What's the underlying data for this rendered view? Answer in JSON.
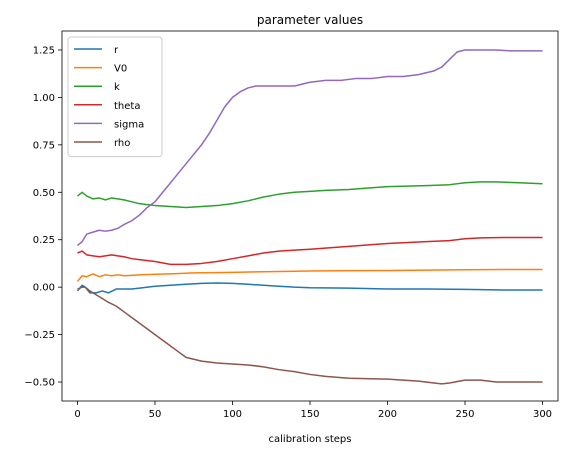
{
  "chart_data": {
    "type": "line",
    "title": "parameter values",
    "xlabel": "calibration steps",
    "ylabel": "",
    "xlim": [
      -10,
      310
    ],
    "ylim": [
      -0.6,
      1.35
    ],
    "xticks": [
      0,
      50,
      100,
      150,
      200,
      250,
      300
    ],
    "yticks": [
      -0.5,
      -0.25,
      0.0,
      0.25,
      0.5,
      0.75,
      1.0,
      1.25
    ],
    "ytick_labels": [
      "−0.50",
      "−0.25",
      "0.00",
      "0.25",
      "0.50",
      "0.75",
      "1.00",
      "1.25"
    ],
    "grid": false,
    "legend_position": "upper-left",
    "series": [
      {
        "name": "r",
        "color": "#1f77b4",
        "points": [
          [
            0,
            -0.02
          ],
          [
            3,
            0.01
          ],
          [
            5,
            0.0
          ],
          [
            8,
            -0.03
          ],
          [
            12,
            -0.03
          ],
          [
            16,
            -0.02
          ],
          [
            20,
            -0.03
          ],
          [
            25,
            -0.01
          ],
          [
            30,
            -0.01
          ],
          [
            35,
            -0.01
          ],
          [
            40,
            -0.005
          ],
          [
            50,
            0.005
          ],
          [
            60,
            0.01
          ],
          [
            70,
            0.015
          ],
          [
            80,
            0.02
          ],
          [
            90,
            0.022
          ],
          [
            100,
            0.02
          ],
          [
            110,
            0.015
          ],
          [
            120,
            0.01
          ],
          [
            130,
            0.005
          ],
          [
            140,
            0.0
          ],
          [
            150,
            -0.003
          ],
          [
            175,
            -0.005
          ],
          [
            200,
            -0.01
          ],
          [
            225,
            -0.01
          ],
          [
            250,
            -0.012
          ],
          [
            275,
            -0.015
          ],
          [
            300,
            -0.015
          ]
        ]
      },
      {
        "name": "V0",
        "color": "#ff7f0e",
        "points": [
          [
            0,
            0.03
          ],
          [
            3,
            0.06
          ],
          [
            6,
            0.055
          ],
          [
            10,
            0.07
          ],
          [
            14,
            0.055
          ],
          [
            18,
            0.065
          ],
          [
            22,
            0.06
          ],
          [
            26,
            0.065
          ],
          [
            30,
            0.06
          ],
          [
            40,
            0.065
          ],
          [
            50,
            0.068
          ],
          [
            60,
            0.07
          ],
          [
            75,
            0.075
          ],
          [
            100,
            0.078
          ],
          [
            125,
            0.082
          ],
          [
            150,
            0.085
          ],
          [
            175,
            0.087
          ],
          [
            200,
            0.088
          ],
          [
            225,
            0.09
          ],
          [
            250,
            0.092
          ],
          [
            275,
            0.093
          ],
          [
            300,
            0.093
          ]
        ]
      },
      {
        "name": "k",
        "color": "#2ca02c",
        "points": [
          [
            0,
            0.48
          ],
          [
            3,
            0.5
          ],
          [
            6,
            0.48
          ],
          [
            10,
            0.465
          ],
          [
            14,
            0.47
          ],
          [
            18,
            0.46
          ],
          [
            22,
            0.47
          ],
          [
            26,
            0.465
          ],
          [
            30,
            0.46
          ],
          [
            40,
            0.44
          ],
          [
            50,
            0.43
          ],
          [
            60,
            0.425
          ],
          [
            70,
            0.42
          ],
          [
            80,
            0.425
          ],
          [
            90,
            0.43
          ],
          [
            100,
            0.44
          ],
          [
            110,
            0.455
          ],
          [
            120,
            0.475
          ],
          [
            130,
            0.49
          ],
          [
            140,
            0.5
          ],
          [
            150,
            0.505
          ],
          [
            160,
            0.51
          ],
          [
            175,
            0.515
          ],
          [
            200,
            0.53
          ],
          [
            225,
            0.535
          ],
          [
            240,
            0.54
          ],
          [
            250,
            0.55
          ],
          [
            260,
            0.555
          ],
          [
            270,
            0.555
          ],
          [
            285,
            0.55
          ],
          [
            300,
            0.545
          ]
        ]
      },
      {
        "name": "theta",
        "color": "#d62728",
        "points": [
          [
            0,
            0.18
          ],
          [
            3,
            0.19
          ],
          [
            6,
            0.17
          ],
          [
            10,
            0.165
          ],
          [
            14,
            0.16
          ],
          [
            18,
            0.165
          ],
          [
            22,
            0.17
          ],
          [
            26,
            0.165
          ],
          [
            30,
            0.16
          ],
          [
            35,
            0.15
          ],
          [
            40,
            0.145
          ],
          [
            50,
            0.135
          ],
          [
            60,
            0.12
          ],
          [
            70,
            0.12
          ],
          [
            80,
            0.125
          ],
          [
            90,
            0.135
          ],
          [
            100,
            0.15
          ],
          [
            110,
            0.165
          ],
          [
            120,
            0.18
          ],
          [
            130,
            0.19
          ],
          [
            140,
            0.195
          ],
          [
            150,
            0.2
          ],
          [
            175,
            0.215
          ],
          [
            200,
            0.23
          ],
          [
            225,
            0.24
          ],
          [
            240,
            0.245
          ],
          [
            250,
            0.255
          ],
          [
            260,
            0.26
          ],
          [
            275,
            0.262
          ],
          [
            300,
            0.262
          ]
        ]
      },
      {
        "name": "sigma",
        "color": "#9467bd",
        "points": [
          [
            0,
            0.22
          ],
          [
            3,
            0.24
          ],
          [
            6,
            0.28
          ],
          [
            10,
            0.29
          ],
          [
            14,
            0.3
          ],
          [
            18,
            0.295
          ],
          [
            22,
            0.3
          ],
          [
            26,
            0.31
          ],
          [
            30,
            0.33
          ],
          [
            35,
            0.35
          ],
          [
            40,
            0.38
          ],
          [
            45,
            0.42
          ],
          [
            50,
            0.45
          ],
          [
            55,
            0.5
          ],
          [
            60,
            0.55
          ],
          [
            65,
            0.6
          ],
          [
            70,
            0.65
          ],
          [
            75,
            0.7
          ],
          [
            80,
            0.75
          ],
          [
            85,
            0.81
          ],
          [
            90,
            0.88
          ],
          [
            95,
            0.95
          ],
          [
            100,
            1.0
          ],
          [
            105,
            1.03
          ],
          [
            110,
            1.05
          ],
          [
            115,
            1.06
          ],
          [
            120,
            1.06
          ],
          [
            130,
            1.06
          ],
          [
            140,
            1.06
          ],
          [
            150,
            1.08
          ],
          [
            160,
            1.09
          ],
          [
            170,
            1.09
          ],
          [
            180,
            1.1
          ],
          [
            190,
            1.1
          ],
          [
            200,
            1.11
          ],
          [
            210,
            1.11
          ],
          [
            220,
            1.12
          ],
          [
            230,
            1.14
          ],
          [
            235,
            1.16
          ],
          [
            240,
            1.2
          ],
          [
            245,
            1.24
          ],
          [
            250,
            1.25
          ],
          [
            260,
            1.25
          ],
          [
            270,
            1.25
          ],
          [
            280,
            1.245
          ],
          [
            290,
            1.245
          ],
          [
            300,
            1.245
          ]
        ]
      },
      {
        "name": "rho",
        "color": "#8c564b",
        "points": [
          [
            0,
            -0.01
          ],
          [
            3,
            0.0
          ],
          [
            5,
            0.0
          ],
          [
            8,
            -0.02
          ],
          [
            12,
            -0.04
          ],
          [
            16,
            -0.06
          ],
          [
            20,
            -0.08
          ],
          [
            25,
            -0.1
          ],
          [
            30,
            -0.13
          ],
          [
            35,
            -0.16
          ],
          [
            40,
            -0.19
          ],
          [
            45,
            -0.22
          ],
          [
            50,
            -0.25
          ],
          [
            55,
            -0.28
          ],
          [
            60,
            -0.31
          ],
          [
            65,
            -0.34
          ],
          [
            70,
            -0.37
          ],
          [
            75,
            -0.38
          ],
          [
            80,
            -0.39
          ],
          [
            90,
            -0.4
          ],
          [
            100,
            -0.405
          ],
          [
            110,
            -0.41
          ],
          [
            120,
            -0.42
          ],
          [
            130,
            -0.435
          ],
          [
            140,
            -0.445
          ],
          [
            150,
            -0.46
          ],
          [
            160,
            -0.47
          ],
          [
            175,
            -0.48
          ],
          [
            200,
            -0.485
          ],
          [
            210,
            -0.49
          ],
          [
            220,
            -0.495
          ],
          [
            230,
            -0.505
          ],
          [
            235,
            -0.51
          ],
          [
            240,
            -0.505
          ],
          [
            250,
            -0.49
          ],
          [
            260,
            -0.49
          ],
          [
            270,
            -0.5
          ],
          [
            285,
            -0.5
          ],
          [
            300,
            -0.5
          ]
        ]
      }
    ]
  }
}
